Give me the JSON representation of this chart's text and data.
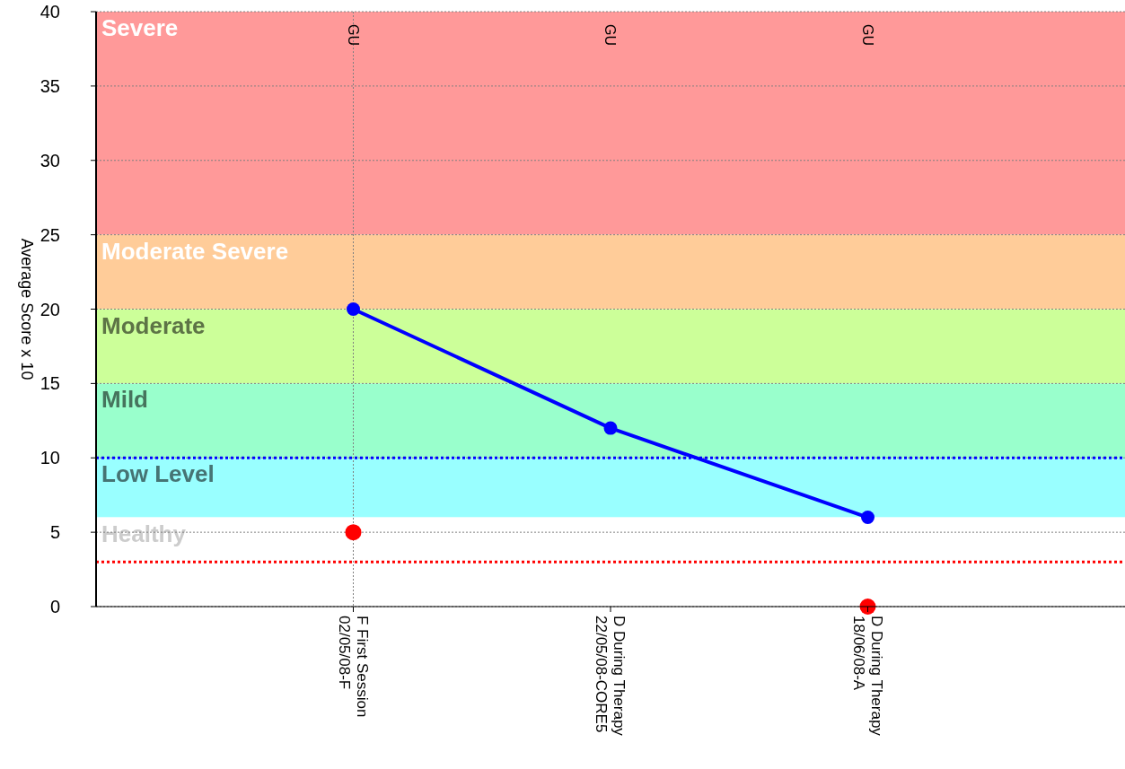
{
  "chart_data": {
    "type": "line",
    "ylabel": "Average Score x 10",
    "categories": [
      "F First Session\n02/05/08-F",
      "D During Therapy\n22/05/08-CORE5",
      "D During Therapy\n18/06/08-A"
    ],
    "series": [
      {
        "color": "#0000ff",
        "values": [
          20,
          12,
          6
        ]
      },
      {
        "type": "scatter",
        "color": "#ff0000",
        "values": [
          5,
          null,
          0
        ]
      }
    ],
    "ylim": [
      0,
      40
    ],
    "yticks": [
      0,
      5,
      10,
      15,
      20,
      25,
      30,
      35,
      40
    ],
    "grid": "y",
    "marker": "circle",
    "legend": false,
    "bands": [
      {
        "axis": "y",
        "from": 25,
        "to": 40,
        "label": "Severe",
        "color": "#ff9999"
      },
      {
        "axis": "y",
        "from": 20,
        "to": 25,
        "label": "Moderate Severe",
        "color": "#ffcc99"
      },
      {
        "axis": "y",
        "from": 15,
        "to": 20,
        "label": "Moderate",
        "color": "#ccff99"
      },
      {
        "axis": "y",
        "from": 10,
        "to": 15,
        "label": "Mild",
        "color": "#99ffcc"
      },
      {
        "axis": "y",
        "from": 6,
        "to": 10,
        "label": "Low Level",
        "color": "#99ffff"
      },
      {
        "axis": "y",
        "from": 0,
        "to": 6,
        "label": "Healthy",
        "color": "#ffffff"
      }
    ],
    "ref_lines": [
      {
        "axis": "y",
        "value": 10,
        "color": "#0000ff",
        "line_style": "dotted"
      },
      {
        "axis": "y",
        "value": 3,
        "color": "#ff0000",
        "line_style": "dotted"
      },
      {
        "axis": "x",
        "value": "F First Session\n02/05/08-F",
        "color": "#808080",
        "line_style": "dotted"
      }
    ],
    "annotations": [
      {
        "text": "GU",
        "x": "F First Session\n02/05/08-F",
        "y": 40
      },
      {
        "text": "GU",
        "x": "D During Therapy\n22/05/08-CORE5",
        "y": 40
      },
      {
        "text": "GU",
        "x": "D During Therapy\n18/06/08-A",
        "y": 40
      }
    ]
  }
}
